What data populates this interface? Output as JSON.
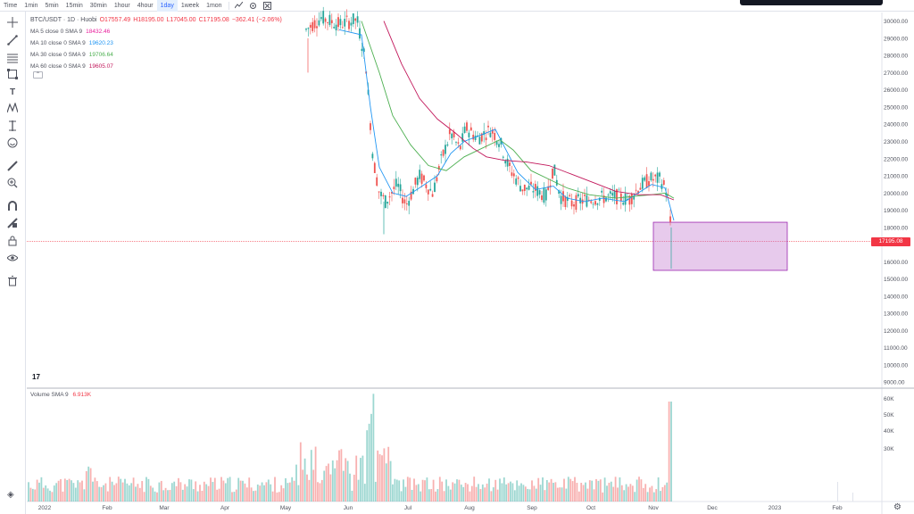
{
  "toolbar": {
    "timeframes": [
      "Time",
      "1min",
      "5min",
      "15min",
      "30min",
      "1hour",
      "4hour",
      "1day",
      "1week",
      "1mon"
    ],
    "active_timeframe": "1day",
    "icons": [
      "indicators-icon",
      "settings-icon",
      "fullscreen-icon"
    ]
  },
  "legend": {
    "symbol": "BTC/USDT · 1D · Huobi",
    "open": "O17557.49",
    "high": "H18195.00",
    "low": "L17045.00",
    "close": "C17195.08",
    "change": "−362.41 (−2.06%)"
  },
  "indicators": [
    {
      "label": "MA 5 close 0 SMA 9",
      "value": "18432.46",
      "color": "#e91e9c"
    },
    {
      "label": "MA 10 close 0 SMA 9",
      "value": "19620.23",
      "color": "#2196f3"
    },
    {
      "label": "MA 30 close 0 SMA 9",
      "value": "19706.64",
      "color": "#4caf50"
    },
    {
      "label": "MA 60 close 0 SMA 9",
      "value": "19605.07",
      "color": "#c2185b"
    }
  ],
  "volume_legend": {
    "label": "Volume SMA 9",
    "value": "6.913K",
    "color": "#f23645"
  },
  "current_price": "17195.08",
  "tv_logo": "17",
  "chart_data": {
    "type": "candlestick",
    "price_axis": [
      "30000.00",
      "29000.00",
      "28000.00",
      "27000.00",
      "26000.00",
      "25000.00",
      "24000.00",
      "23000.00",
      "22000.00",
      "21000.00",
      "20000.00",
      "19000.00",
      "18000.00",
      "16000.00",
      "15000.00",
      "14000.00",
      "13000.00",
      "12000.00",
      "11000.00",
      "10000.00",
      "9000.00"
    ],
    "volume_axis": [
      "60K",
      "50K",
      "40K",
      "30K"
    ],
    "time_axis": [
      "2022",
      "Feb",
      "Mar",
      "Apr",
      "May",
      "Jun",
      "Jul",
      "Aug",
      "Sep",
      "Oct",
      "Nov",
      "Dec",
      "2023",
      "Feb"
    ],
    "ylim": [
      8700,
      30500
    ],
    "rectangle": {
      "from": "Nov",
      "price_range": [
        15500,
        18300
      ]
    }
  },
  "left_tools": [
    "crosshair-icon",
    "trendline-icon",
    "fib-icon",
    "rectangle-icon",
    "text-icon",
    "pattern-icon",
    "projection-icon",
    "emoji-icon",
    "ruler-icon",
    "zoom-icon",
    "magnet-icon",
    "lock-drawing-icon",
    "lock-icon",
    "eye-icon",
    "trash-icon"
  ]
}
